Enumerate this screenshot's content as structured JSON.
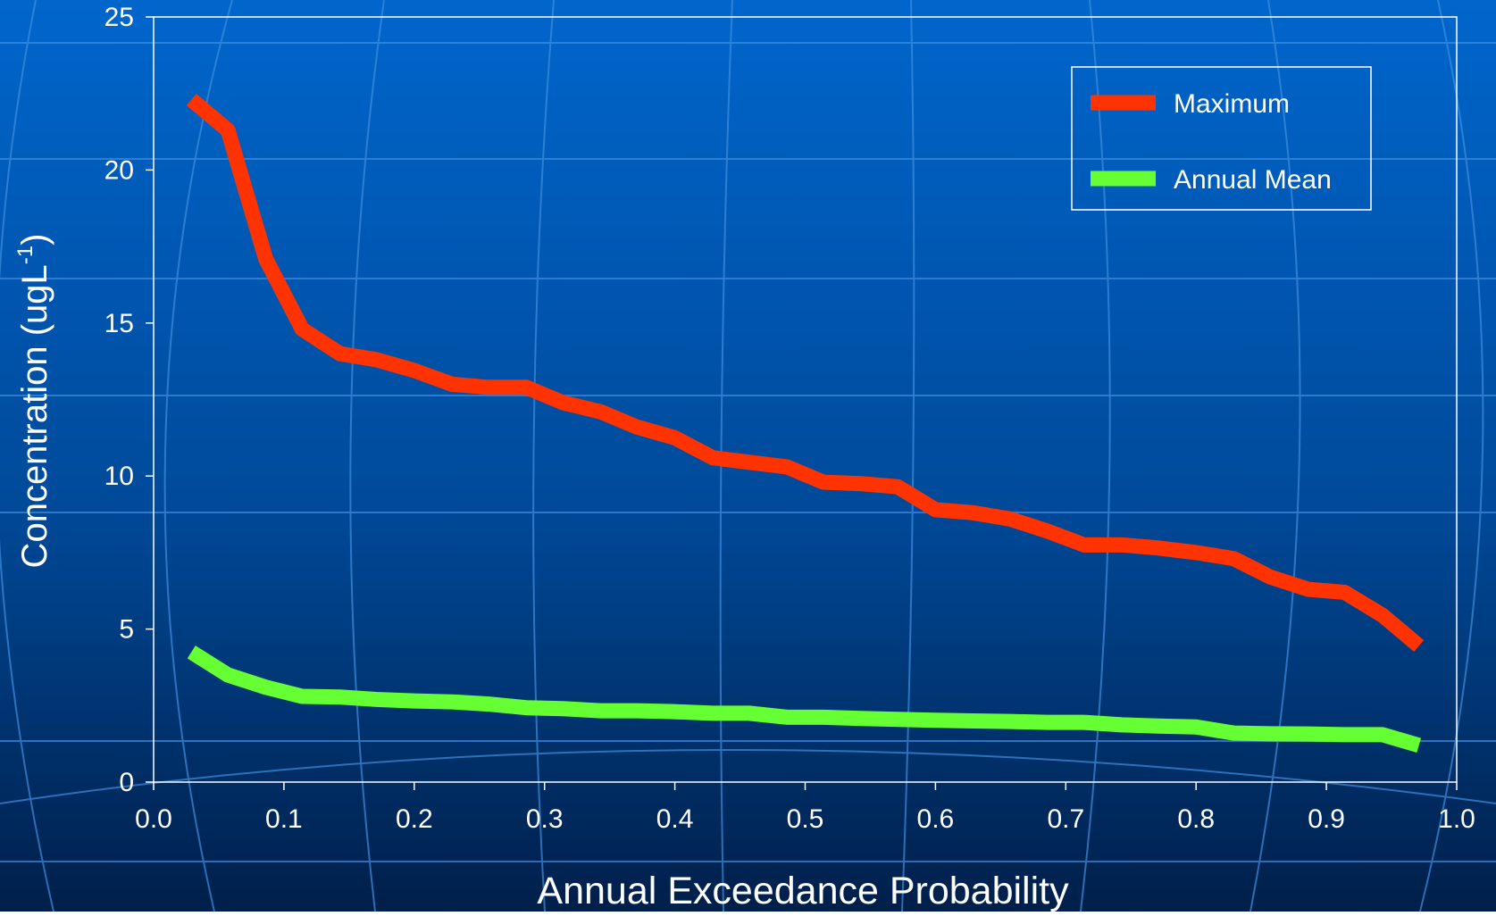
{
  "chart_data": {
    "type": "line",
    "x_label": "Annual Exceedance Probability",
    "y_label": {
      "text": "Concentration (ugL",
      "superscript": "-1",
      "suffix": ")"
    },
    "xlim": [
      0,
      1
    ],
    "ylim": [
      0,
      25
    ],
    "xticks": [
      {
        "value": 0,
        "label": "0.0"
      },
      0.1,
      0.2,
      0.3,
      0.4,
      0.5,
      0.6,
      0.7,
      0.8,
      0.9,
      {
        "value": 1,
        "label": "1.0"
      }
    ],
    "yticks": [
      0,
      5,
      10,
      15,
      20,
      25
    ],
    "legend": "upper right",
    "x": [
      0.029,
      0.057,
      0.086,
      0.114,
      0.143,
      0.171,
      0.2,
      0.229,
      0.257,
      0.286,
      0.314,
      0.343,
      0.371,
      0.4,
      0.429,
      0.457,
      0.486,
      0.514,
      0.543,
      0.571,
      0.6,
      0.629,
      0.657,
      0.686,
      0.714,
      0.743,
      0.771,
      0.8,
      0.829,
      0.857,
      0.886,
      0.914,
      0.943,
      0.971
    ],
    "series": [
      {
        "name": "Maximum",
        "color": "#ff3300",
        "values": [
          22.3,
          21.3,
          17.1,
          14.8,
          14.0,
          13.8,
          13.45,
          13.0,
          12.9,
          12.9,
          12.4,
          12.1,
          11.6,
          11.25,
          10.6,
          10.45,
          10.3,
          9.8,
          9.75,
          9.65,
          8.9,
          8.8,
          8.6,
          8.2,
          7.75,
          7.75,
          7.65,
          7.5,
          7.3,
          6.7,
          6.3,
          6.2,
          5.45,
          4.45
        ]
      },
      {
        "name": "Annual Mean",
        "color": "#66ff33",
        "values": [
          4.25,
          3.5,
          3.1,
          2.8,
          2.78,
          2.7,
          2.65,
          2.62,
          2.55,
          2.43,
          2.4,
          2.33,
          2.33,
          2.3,
          2.25,
          2.25,
          2.12,
          2.12,
          2.08,
          2.05,
          2.02,
          2.0,
          1.98,
          1.95,
          1.95,
          1.87,
          1.83,
          1.8,
          1.6,
          1.58,
          1.57,
          1.55,
          1.55,
          1.2
        ]
      }
    ]
  }
}
